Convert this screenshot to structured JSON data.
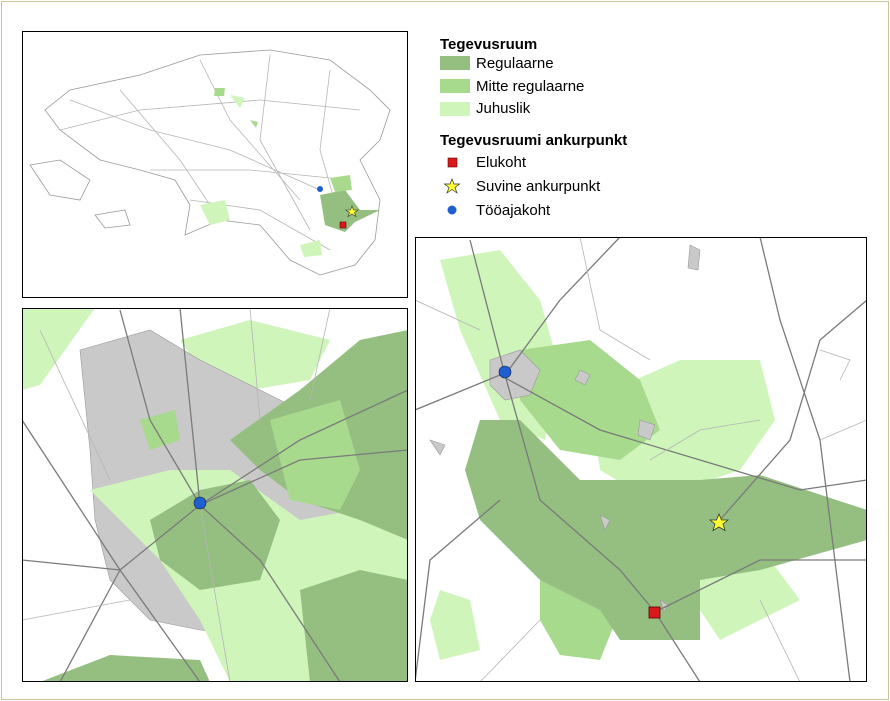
{
  "legend": {
    "title": "Tegevusruum",
    "items": [
      "Regulaarne",
      "Mitte regulaarne",
      "Juhuslik"
    ]
  },
  "anchors": {
    "title": "Tegevusruumi ankurpunkt",
    "items": [
      "Elukoht",
      "Suvine ankurpunkt",
      "Tööajakoht"
    ]
  }
}
